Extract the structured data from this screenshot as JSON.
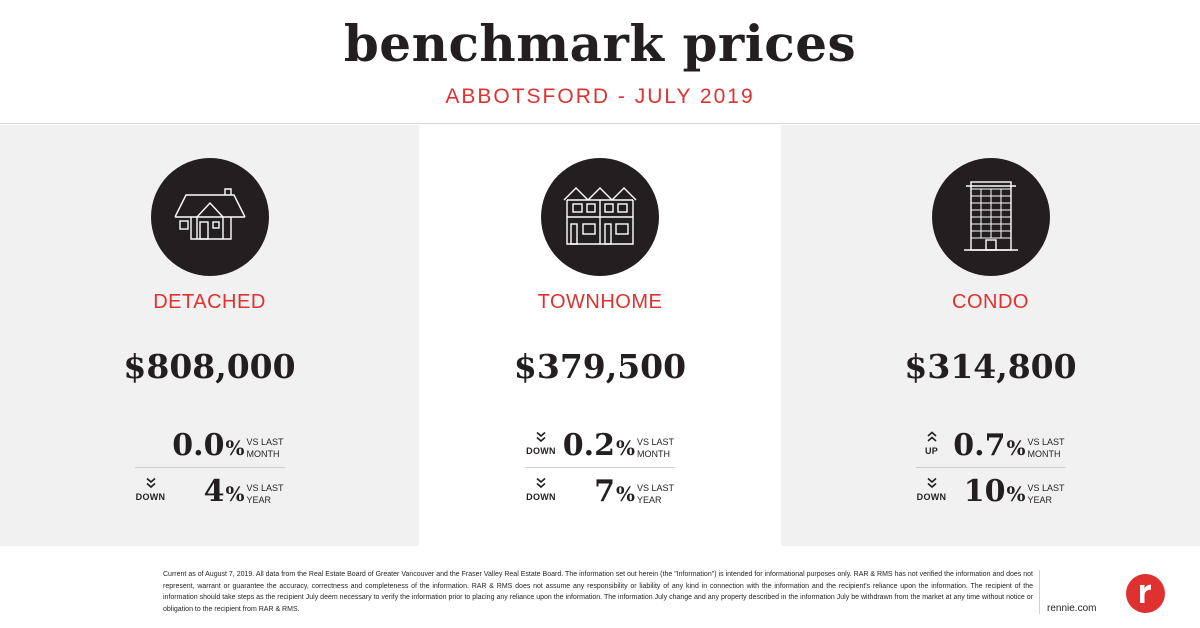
{
  "header": {
    "title": "benchmark prices",
    "subtitle": "ABBOTSFORD - JULY 2019"
  },
  "colors": {
    "accent": "#e03131",
    "dark": "#231f20",
    "panel_gray": "#f1f1f1"
  },
  "columns": [
    {
      "type": "DETACHED",
      "icon": "detached-house-icon",
      "price": "$808,000",
      "month": {
        "direction": "",
        "pct": "0.0",
        "sign": "%",
        "vs_line1": "VS LAST",
        "vs_line2": "MONTH"
      },
      "year": {
        "direction": "DOWN",
        "pct": "4",
        "sign": "%",
        "vs_line1": "VS LAST",
        "vs_line2": "YEAR"
      }
    },
    {
      "type": "TOWNHOME",
      "icon": "townhome-icon",
      "price": "$379,500",
      "month": {
        "direction": "DOWN",
        "pct": "0.2",
        "sign": "%",
        "vs_line1": "VS LAST",
        "vs_line2": "MONTH"
      },
      "year": {
        "direction": "DOWN",
        "pct": "7",
        "sign": "%",
        "vs_line1": "VS LAST",
        "vs_line2": "YEAR"
      }
    },
    {
      "type": "CONDO",
      "icon": "condo-building-icon",
      "price": "$314,800",
      "month": {
        "direction": "UP",
        "pct": "0.7",
        "sign": "%",
        "vs_line1": "VS LAST",
        "vs_line2": "MONTH"
      },
      "year": {
        "direction": "DOWN",
        "pct": "10",
        "sign": "%",
        "vs_line1": "VS LAST",
        "vs_line2": "YEAR"
      }
    }
  ],
  "footer": {
    "disclaimer": "Current as of August 7, 2019. All data from the Real Estate Board of Greater Vancouver and the Fraser Valley Real Estate Board. The information set out herein (the \"Information\") is intended for informational purposes only. RAR & RMS has not verified the information and does not represent, warrant or guarantee the accuracy, correctness and completeness of the information. RAR & RMS does not assume any responsibility or liability of any kind in connection with the information and the recipient's reliance upon the information. The recipient of the information should take steps as the recipient July deem necessary to verify the information prior to placing any reliance upon the information. The information July change and any property described in the information July be withdrawn from the market at any time without notice or obligation to the recipient from RAR & RMS.",
    "website": "rennie.com",
    "logo_icon": "rennie-logo-icon"
  }
}
